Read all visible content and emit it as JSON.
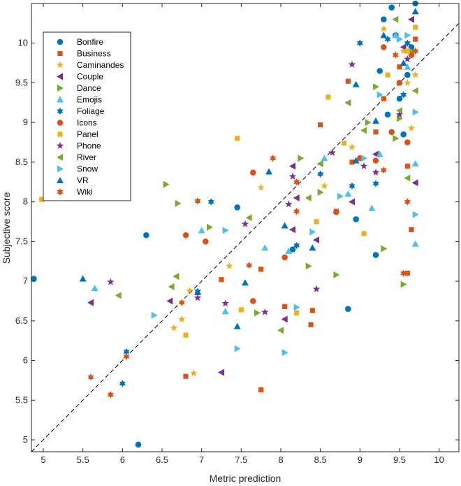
{
  "chart_data": {
    "type": "scatter",
    "xlabel": "Metric prediction",
    "ylabel": "Subjective score",
    "xlim": [
      4.85,
      10.25
    ],
    "ylim": [
      4.85,
      10.5
    ],
    "xticks": [
      5,
      5.5,
      6,
      6.5,
      7,
      7.5,
      8,
      8.5,
      9,
      9.5,
      10
    ],
    "yticks": [
      5,
      5.5,
      6,
      6.5,
      7,
      7.5,
      8,
      8.5,
      9,
      9.5,
      10
    ],
    "reference_line": {
      "type": "diagonal",
      "style": "dashed",
      "color": "#000000"
    },
    "legend_position": "top-left",
    "grid": false,
    "series": [
      {
        "name": "Bonfire",
        "marker": "circle",
        "color": "#0072BD",
        "points": [
          [
            4.88,
            7.03
          ],
          [
            6.3,
            7.58
          ],
          [
            7.45,
            7.93
          ],
          [
            6.2,
            4.94
          ],
          [
            8.85,
            6.65
          ],
          [
            9.2,
            7.33
          ],
          [
            8.95,
            7.78
          ],
          [
            9.4,
            10.45
          ],
          [
            9.7,
            10.5
          ],
          [
            9.3,
            10.3
          ],
          [
            9.55,
            8.85
          ],
          [
            9.5,
            9.3
          ],
          [
            9.25,
            9.65
          ],
          [
            9.6,
            9.6
          ],
          [
            9.45,
            10.1
          ],
          [
            8.15,
            7.4
          ],
          [
            9.35,
            9.1
          ],
          [
            9.65,
            9.95
          ]
        ]
      },
      {
        "name": "Business",
        "marker": "square",
        "color": "#D95319",
        "points": [
          [
            7.25,
            7.02
          ],
          [
            6.8,
            5.8
          ],
          [
            7.75,
            5.63
          ],
          [
            8.05,
            6.68
          ],
          [
            8.4,
            6.63
          ],
          [
            8.38,
            6.45
          ],
          [
            7.75,
            7.15
          ],
          [
            8.7,
            7.88
          ],
          [
            9.3,
            9.3
          ],
          [
            9.5,
            9.7
          ],
          [
            9.6,
            7.1
          ],
          [
            9.65,
            7.65
          ],
          [
            9.6,
            8.45
          ],
          [
            9.2,
            8.88
          ],
          [
            8.9,
            8.5
          ],
          [
            8.5,
            8.97
          ],
          [
            8.85,
            9.52
          ],
          [
            9.7,
            10.05
          ]
        ]
      },
      {
        "name": "Caminandes",
        "marker": "star",
        "color": "#EDB120",
        "points": [
          [
            6.65,
            6.41
          ],
          [
            6.75,
            6.52
          ],
          [
            6.85,
            6.88
          ],
          [
            6.9,
            5.84
          ],
          [
            7.35,
            7.19
          ],
          [
            7.75,
            8.18
          ],
          [
            8.55,
            8.2
          ],
          [
            8.9,
            8.69
          ],
          [
            9.3,
            10.18
          ],
          [
            9.6,
            9.5
          ],
          [
            9.65,
            8.93
          ],
          [
            9.55,
            9.9
          ],
          [
            9.7,
            9.6
          ]
        ]
      },
      {
        "name": "Couple",
        "marker": "triangle-left",
        "color": "#7E2F8E",
        "points": [
          [
            5.6,
            6.73
          ],
          [
            6.6,
            6.75
          ],
          [
            7.25,
            5.85
          ],
          [
            8.05,
            6.52
          ],
          [
            8.45,
            7.52
          ],
          [
            8.15,
            7.65
          ],
          [
            8.2,
            8.05
          ],
          [
            8.15,
            8.45
          ],
          [
            8.9,
            8.0
          ],
          [
            9.2,
            8.6
          ],
          [
            9.7,
            8.24
          ],
          [
            9.55,
            9.95
          ],
          [
            9.65,
            10.3
          ]
        ]
      },
      {
        "name": "Dance",
        "marker": "triangle-right",
        "color": "#77AC30",
        "points": [
          [
            6.55,
            8.22
          ],
          [
            6.7,
            7.98
          ],
          [
            7.1,
            7.68
          ],
          [
            7.7,
            6.6
          ],
          [
            8.35,
            7.19
          ],
          [
            8.7,
            7.08
          ],
          [
            8.5,
            8.12
          ],
          [
            8.25,
            8.55
          ],
          [
            9.3,
            7.41
          ],
          [
            9.55,
            6.96
          ],
          [
            9.1,
            9.0
          ],
          [
            9.2,
            9.45
          ],
          [
            9.45,
            8.8
          ],
          [
            9.65,
            9.9
          ],
          [
            9.5,
            9.05
          ]
        ]
      },
      {
        "name": "Emojis",
        "marker": "triangle-up",
        "color": "#4DBEEE",
        "points": [
          [
            5.65,
            6.91
          ],
          [
            7.0,
            7.64
          ],
          [
            7.3,
            6.62
          ],
          [
            7.8,
            7.42
          ],
          [
            8.1,
            7.38
          ],
          [
            8.55,
            8.55
          ],
          [
            8.85,
            8.1
          ],
          [
            9.15,
            7.92
          ],
          [
            9.25,
            8.6
          ],
          [
            9.7,
            8.48
          ],
          [
            9.7,
            7.47
          ],
          [
            9.6,
            9.7
          ],
          [
            9.45,
            10.1
          ]
        ]
      },
      {
        "name": "Foliage",
        "marker": "hexagram",
        "color": "#0072BD",
        "points": [
          [
            6.0,
            5.71
          ],
          [
            6.05,
            6.11
          ],
          [
            6.95,
            6.87
          ],
          [
            7.12,
            8.0
          ],
          [
            8.2,
            7.45
          ],
          [
            8.5,
            8.35
          ],
          [
            8.9,
            8.2
          ],
          [
            9.0,
            10.0
          ],
          [
            9.2,
            8.23
          ],
          [
            9.35,
            10.05
          ],
          [
            9.6,
            10.0
          ],
          [
            9.55,
            9.35
          ]
        ]
      },
      {
        "name": "Icons",
        "marker": "circle",
        "color": "#D95319",
        "points": [
          [
            6.8,
            7.58
          ],
          [
            7.05,
            7.5
          ],
          [
            7.65,
            8.37
          ],
          [
            7.65,
            6.75
          ],
          [
            8.05,
            7.3
          ],
          [
            8.7,
            7.87
          ],
          [
            9.0,
            8.55
          ],
          [
            9.2,
            8.52
          ],
          [
            9.4,
            8.88
          ],
          [
            9.5,
            9.5
          ],
          [
            9.6,
            8.75
          ],
          [
            9.65,
            9.85
          ],
          [
            9.3,
            9.95
          ]
        ]
      },
      {
        "name": "Panel",
        "marker": "square",
        "color": "#EDB120",
        "points": [
          [
            4.98,
            8.03
          ],
          [
            6.8,
            6.32
          ],
          [
            7.45,
            8.8
          ],
          [
            7.5,
            6.64
          ],
          [
            8.2,
            6.6
          ],
          [
            8.45,
            7.75
          ],
          [
            8.6,
            9.32
          ],
          [
            8.8,
            8.74
          ],
          [
            9.05,
            7.6
          ],
          [
            9.35,
            9.6
          ],
          [
            9.6,
            9.9
          ],
          [
            9.7,
            10.2
          ]
        ]
      },
      {
        "name": "Phone",
        "marker": "star",
        "color": "#7E2F8E",
        "points": [
          [
            5.85,
            6.99
          ],
          [
            6.95,
            6.79
          ],
          [
            7.3,
            6.72
          ],
          [
            7.55,
            7.72
          ],
          [
            7.8,
            6.61
          ],
          [
            8.1,
            7.97
          ],
          [
            8.15,
            8.32
          ],
          [
            8.45,
            6.9
          ],
          [
            8.65,
            8.62
          ],
          [
            8.9,
            9.73
          ],
          [
            9.05,
            8.45
          ],
          [
            9.2,
            8.37
          ],
          [
            9.5,
            9.1
          ],
          [
            9.6,
            9.8
          ]
        ]
      },
      {
        "name": "River",
        "marker": "triangle-left",
        "color": "#77AC30",
        "points": [
          [
            5.95,
            6.82
          ],
          [
            6.62,
            6.93
          ],
          [
            6.68,
            7.06
          ],
          [
            7.6,
            7.8
          ],
          [
            8.0,
            6.38
          ],
          [
            8.35,
            8.05
          ],
          [
            8.5,
            8.48
          ],
          [
            8.85,
            9.25
          ],
          [
            9.05,
            8.9
          ],
          [
            9.5,
            9.15
          ],
          [
            9.45,
            10.3
          ],
          [
            9.6,
            8.3
          ],
          [
            9.7,
            9.4
          ]
        ]
      },
      {
        "name": "Snow",
        "marker": "triangle-right",
        "color": "#4DBEEE",
        "points": [
          [
            6.4,
            6.57
          ],
          [
            7.45,
            6.15
          ],
          [
            7.3,
            7.64
          ],
          [
            8.05,
            6.1
          ],
          [
            8.2,
            6.67
          ],
          [
            8.4,
            7.62
          ],
          [
            8.75,
            8.07
          ],
          [
            9.05,
            8.55
          ],
          [
            9.25,
            9.35
          ],
          [
            9.5,
            10.05
          ],
          [
            9.7,
            7.84
          ],
          [
            9.7,
            9.13
          ],
          [
            9.6,
            10.1
          ]
        ]
      },
      {
        "name": "VR",
        "marker": "triangle-up",
        "color": "#0072BD",
        "points": [
          [
            5.5,
            7.03
          ],
          [
            6.95,
            6.86
          ],
          [
            7.45,
            6.43
          ],
          [
            7.55,
            6.98
          ],
          [
            7.85,
            8.38
          ],
          [
            8.05,
            7.7
          ],
          [
            8.4,
            7.42
          ],
          [
            8.95,
            8.52
          ],
          [
            8.95,
            9.48
          ],
          [
            9.2,
            9.02
          ],
          [
            9.3,
            10.1
          ],
          [
            9.55,
            9.75
          ],
          [
            9.7,
            10.4
          ]
        ]
      },
      {
        "name": "Wiki",
        "marker": "hexagram",
        "color": "#D95319",
        "points": [
          [
            5.6,
            5.79
          ],
          [
            5.85,
            5.57
          ],
          [
            6.05,
            6.05
          ],
          [
            6.75,
            6.73
          ],
          [
            6.95,
            8.01
          ],
          [
            7.6,
            7.2
          ],
          [
            7.9,
            8.55
          ],
          [
            8.2,
            8.25
          ],
          [
            8.2,
            7.88
          ],
          [
            9.3,
            8.4
          ],
          [
            9.55,
            7.1
          ],
          [
            9.6,
            8.0
          ],
          [
            9.45,
            9.85
          ],
          [
            9.7,
            9.9
          ]
        ]
      }
    ]
  }
}
